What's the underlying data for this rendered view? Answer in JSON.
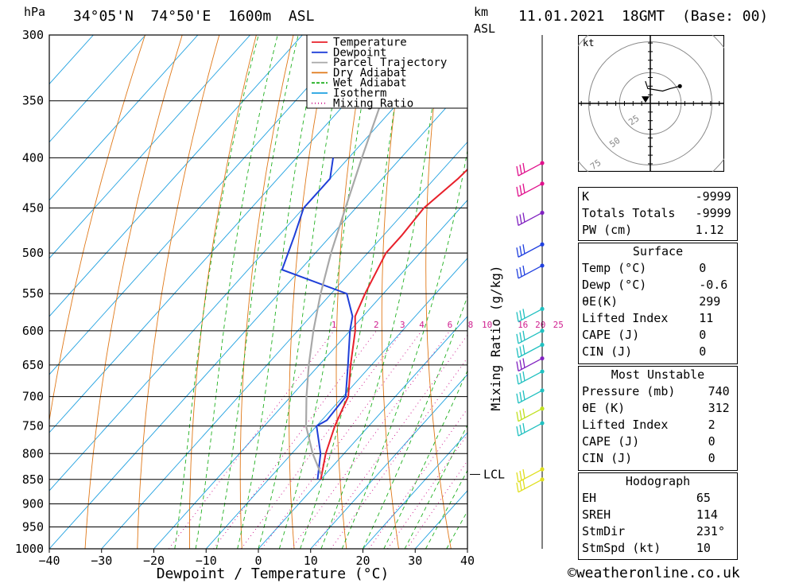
{
  "header": {
    "hpa_unit": "hPa",
    "location": "34°05'N  74°50'E  1600m  ASL",
    "km_unit": "km",
    "asl_unit": "ASL",
    "datetime": "11.01.2021  18GMT  (Base: 00)"
  },
  "footer": {
    "copyright": "©weatheronline.co.uk"
  },
  "indices": {
    "general": [
      {
        "label": "K",
        "value": "-9999"
      },
      {
        "label": "Totals Totals",
        "value": "-9999"
      },
      {
        "label": "PW (cm)",
        "value": "1.12"
      }
    ],
    "surface_title": "Surface",
    "surface": [
      {
        "label": "Temp (°C)",
        "value": "0"
      },
      {
        "label": "Dewp (°C)",
        "value": "-0.6"
      },
      {
        "label": "θE(K)",
        "value": "299"
      },
      {
        "label": "Lifted Index",
        "value": "11"
      },
      {
        "label": "CAPE (J)",
        "value": "0"
      },
      {
        "label": "CIN (J)",
        "value": "0"
      }
    ],
    "most_unstable_title": "Most Unstable",
    "most_unstable": [
      {
        "label": "Pressure (mb)",
        "value": "740"
      },
      {
        "label": "θE (K)",
        "value": "312"
      },
      {
        "label": "Lifted Index",
        "value": "2"
      },
      {
        "label": "CAPE (J)",
        "value": "0"
      },
      {
        "label": "CIN (J)",
        "value": "0"
      }
    ],
    "hodograph_title": "Hodograph",
    "hodograph": [
      {
        "label": "EH",
        "value": "65"
      },
      {
        "label": "SREH",
        "value": "114"
      },
      {
        "label": "StmDir",
        "value": "231°"
      },
      {
        "label": "StmSpd (kt)",
        "value": "10"
      }
    ]
  },
  "chart_data": [
    {
      "type": "line",
      "subtype": "skew-T log-P diagram",
      "xlabel": "Dewpoint / Temperature (°C)",
      "ylabel": "",
      "secondary_ylabel": "Mixing Ratio (g/kg)",
      "x_ticks": [
        -40,
        -30,
        -20,
        -10,
        0,
        10,
        20,
        30,
        40
      ],
      "xlim": [
        -40,
        40
      ],
      "pressure_levels": [
        300,
        350,
        400,
        450,
        500,
        550,
        600,
        650,
        700,
        750,
        800,
        850,
        900,
        950,
        1000
      ],
      "ylim": [
        1000,
        300
      ],
      "y_scale": "log",
      "legend": {
        "placement": "top",
        "entries": [
          {
            "name": "Temperature",
            "color": "#e8202a"
          },
          {
            "name": "Dewpoint",
            "color": "#1f3fd8"
          },
          {
            "name": "Parcel Trajectory",
            "color": "#a8a8a8"
          },
          {
            "name": "Dry Adiabat",
            "color": "#e07818"
          },
          {
            "name": "Wet Adiabat",
            "color": "#20b020"
          },
          {
            "name": "Isotherm",
            "color": "#1ea0e0"
          },
          {
            "name": "Mixing Ratio",
            "color": "#d02090"
          }
        ]
      },
      "mixing_ratio_labels": [
        "1",
        "2",
        "3",
        "4",
        "6",
        "8",
        "10",
        "16",
        "20",
        "25"
      ],
      "mixing_ratio_values": [
        1,
        2,
        3,
        4,
        6,
        8,
        10,
        16,
        20,
        25
      ],
      "lcl_label": "LCL",
      "lcl_pressure": 840,
      "series": [
        {
          "name": "Temperature",
          "color": "#e8202a",
          "points": [
            [
              400,
              -25.0
            ],
            [
              420,
              -25.5
            ],
            [
              450,
              -27.0
            ],
            [
              480,
              -26.5
            ],
            [
              500,
              -26.5
            ],
            [
              550,
              -23.5
            ],
            [
              580,
              -21.5
            ],
            [
              600,
              -19.0
            ],
            [
              650,
              -14.0
            ],
            [
              700,
              -9.0
            ],
            [
              720,
              -8.0
            ],
            [
              750,
              -6.5
            ],
            [
              800,
              -3.5
            ],
            [
              850,
              0.0
            ]
          ]
        },
        {
          "name": "Dewpoint",
          "color": "#1f3fd8",
          "points": [
            [
              400,
              -53.0
            ],
            [
              420,
              -50.0
            ],
            [
              450,
              -50.0
            ],
            [
              480,
              -47.0
            ],
            [
              520,
              -43.5
            ],
            [
              550,
              -27.0
            ],
            [
              580,
              -22.0
            ],
            [
              600,
              -20.0
            ],
            [
              650,
              -14.5
            ],
            [
              700,
              -9.5
            ],
            [
              740,
              -9.0
            ],
            [
              750,
              -10.0
            ],
            [
              800,
              -4.5
            ],
            [
              850,
              -0.6
            ]
          ]
        },
        {
          "name": "Parcel Trajectory",
          "color": "#a8a8a8",
          "points": [
            [
              310,
              -59.0
            ],
            [
              350,
              -53.5
            ],
            [
              400,
              -47.5
            ],
            [
              450,
              -42.0
            ],
            [
              500,
              -37.0
            ],
            [
              550,
              -32.0
            ],
            [
              600,
              -27.0
            ],
            [
              650,
              -22.0
            ],
            [
              700,
              -17.0
            ],
            [
              750,
              -12.0
            ],
            [
              800,
              -6.0
            ],
            [
              840,
              -0.8
            ]
          ]
        }
      ],
      "wind_profile": [
        {
          "pressure": 405,
          "color": "#e0108c"
        },
        {
          "pressure": 425,
          "color": "#e0108c"
        },
        {
          "pressure": 455,
          "color": "#8020c0"
        },
        {
          "pressure": 490,
          "color": "#2040e0"
        },
        {
          "pressure": 515,
          "color": "#2040e0"
        },
        {
          "pressure": 570,
          "color": "#20c0c0"
        },
        {
          "pressure": 600,
          "color": "#20c0c0"
        },
        {
          "pressure": 620,
          "color": "#20c0c0"
        },
        {
          "pressure": 640,
          "color": "#8020c0"
        },
        {
          "pressure": 660,
          "color": "#20c0c0"
        },
        {
          "pressure": 690,
          "color": "#20c0c0"
        },
        {
          "pressure": 720,
          "color": "#c0e020"
        },
        {
          "pressure": 745,
          "color": "#20c0c0"
        },
        {
          "pressure": 830,
          "color": "#e0e020"
        },
        {
          "pressure": 850,
          "color": "#e0e020"
        }
      ]
    },
    {
      "type": "scatter",
      "subtype": "hodograph",
      "unit_label": "kt",
      "ring_labels": [
        "25",
        "50",
        "75"
      ],
      "ring_speeds": [
        25,
        50,
        75
      ],
      "trace": [
        [
          -4,
          18
        ],
        [
          -2,
          12
        ],
        [
          10,
          10
        ],
        [
          16,
          12
        ],
        [
          24,
          14
        ]
      ],
      "storm_motion": {
        "dir_deg": 231,
        "speed_kt": 10
      }
    }
  ]
}
